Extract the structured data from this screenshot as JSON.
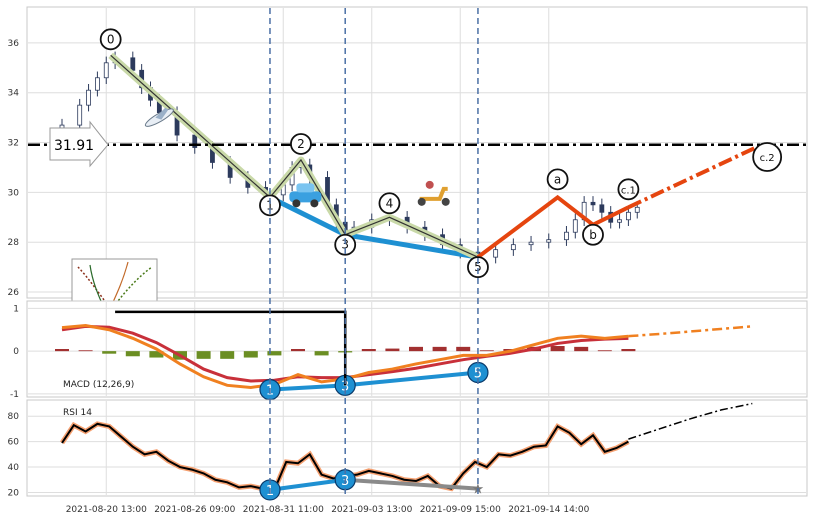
{
  "chart_data": [
    {
      "type": "line",
      "panel": "price",
      "title": "",
      "xlabel": "",
      "ylabel": "",
      "ylim": [
        25.8,
        37.4
      ],
      "yticks": [
        26,
        28,
        30,
        32,
        34,
        36
      ],
      "grid": true,
      "price_candles": [
        {
          "t": 0,
          "close": 32.7
        },
        {
          "t": 2,
          "close": 33.5
        },
        {
          "t": 3,
          "close": 34.1
        },
        {
          "t": 4,
          "close": 34.6
        },
        {
          "t": 5,
          "close": 35.2
        },
        {
          "t": 6,
          "close": 35.4
        },
        {
          "t": 8,
          "close": 34.9
        },
        {
          "t": 9,
          "close": 34.2
        },
        {
          "t": 10,
          "close": 33.7
        },
        {
          "t": 11,
          "close": 33.2
        },
        {
          "t": 13,
          "close": 32.3
        },
        {
          "t": 15,
          "close": 31.8
        },
        {
          "t": 17,
          "close": 31.2
        },
        {
          "t": 19,
          "close": 30.6
        },
        {
          "t": 21,
          "close": 30.2
        },
        {
          "t": 23,
          "close": 29.9
        },
        {
          "t": 25,
          "close": 30.3
        },
        {
          "t": 26,
          "close": 31.0
        },
        {
          "t": 27,
          "close": 31.1
        },
        {
          "t": 28,
          "close": 30.6
        },
        {
          "t": 30,
          "close": 29.5
        },
        {
          "t": 31,
          "close": 28.8
        },
        {
          "t": 32,
          "close": 28.3
        },
        {
          "t": 33,
          "close": 28.6
        },
        {
          "t": 35,
          "close": 28.9
        },
        {
          "t": 37,
          "close": 29.0
        },
        {
          "t": 39,
          "close": 28.6
        },
        {
          "t": 41,
          "close": 28.3
        },
        {
          "t": 43,
          "close": 27.9
        },
        {
          "t": 45,
          "close": 27.6
        },
        {
          "t": 47,
          "close": 27.4
        },
        {
          "t": 49,
          "close": 27.7
        },
        {
          "t": 51,
          "close": 27.9
        },
        {
          "t": 53,
          "close": 28.0
        },
        {
          "t": 55,
          "close": 28.1
        },
        {
          "t": 57,
          "close": 28.4
        },
        {
          "t": 58,
          "close": 28.9
        },
        {
          "t": 59,
          "close": 29.6
        },
        {
          "t": 60,
          "close": 29.5
        },
        {
          "t": 61,
          "close": 29.2
        },
        {
          "t": 62,
          "close": 28.8
        },
        {
          "t": 63,
          "close": 28.9
        },
        {
          "t": 64,
          "close": 29.2
        },
        {
          "t": 65,
          "close": 29.4
        }
      ],
      "wave_path": [
        {
          "label": "0",
          "t": 5.5,
          "value": 35.5
        },
        {
          "label": "1",
          "t": 23.5,
          "value": 29.8
        },
        {
          "label": "2",
          "t": 27,
          "value": 31.3
        },
        {
          "label": "3",
          "t": 32,
          "value": 28.3
        },
        {
          "label": "4",
          "t": 37,
          "value": 29.0
        },
        {
          "label": "5",
          "t": 47,
          "value": 27.4
        }
      ],
      "projection_path": [
        {
          "label": "5",
          "t": 47,
          "value": 27.4
        },
        {
          "label": "a",
          "t": 56,
          "value": 29.8
        },
        {
          "label": "b",
          "t": 60,
          "value": 28.7
        },
        {
          "label": "c.1",
          "t": 64,
          "value": 29.4
        },
        {
          "label": "c.2",
          "t": 79,
          "value": 31.9
        }
      ],
      "support_line": [
        {
          "t": 23.5,
          "value": 29.8
        },
        {
          "t": 32,
          "value": 28.3
        },
        {
          "t": 47,
          "value": 27.4
        }
      ],
      "level_line": {
        "value": 31.91,
        "label": "31.91"
      },
      "wave_labels": [
        "0",
        "1",
        "2",
        "3",
        "4",
        "5",
        "a",
        "b",
        "c.1",
        "c.2"
      ],
      "vertical_markers_t": [
        23.5,
        32,
        47
      ],
      "icons": [
        "airplane-icon",
        "car-icon",
        "scooter-icon"
      ],
      "colors": {
        "wave": "#c9d9a8",
        "wave_edge": "#333333",
        "support": "#1e90d2",
        "projection": "#e5450f",
        "level": "#000000",
        "candle_up": "#ffffff",
        "candle_down": "#2c3a5c",
        "marker": "#4a6fa5"
      }
    },
    {
      "type": "line",
      "panel": "macd",
      "label": "MACD (12,26,9)",
      "ylim": [
        -1.05,
        1.15
      ],
      "yticks": [
        -1,
        0,
        1
      ],
      "grid": true,
      "macd": [
        0.55,
        0.6,
        0.5,
        0.3,
        0.05,
        -0.3,
        -0.6,
        -0.8,
        -0.85,
        -0.78,
        -0.55,
        -0.72,
        -0.65,
        -0.5,
        -0.42,
        -0.3,
        -0.2,
        -0.1,
        -0.1,
        0.0,
        0.15,
        0.3,
        0.35,
        0.3,
        0.35
      ],
      "signal": [
        0.5,
        0.58,
        0.56,
        0.42,
        0.2,
        -0.1,
        -0.42,
        -0.62,
        -0.7,
        -0.68,
        -0.6,
        -0.62,
        -0.62,
        -0.55,
        -0.48,
        -0.4,
        -0.3,
        -0.2,
        -0.12,
        -0.05,
        0.05,
        0.18,
        0.25,
        0.28,
        0.3
      ],
      "histogram": [
        0.05,
        0.02,
        -0.06,
        -0.12,
        -0.15,
        -0.2,
        -0.18,
        -0.18,
        -0.15,
        -0.1,
        0.05,
        -0.1,
        -0.03,
        0.05,
        0.06,
        0.1,
        0.1,
        0.1,
        0.02,
        0.05,
        0.1,
        0.12,
        0.1,
        0.02,
        0.05
      ],
      "projection": [
        0.35,
        0.42,
        0.5,
        0.58
      ],
      "points": [
        {
          "label": "1",
          "t": 23.5,
          "value": -0.9
        },
        {
          "label": "3",
          "t": 32,
          "value": -0.8
        },
        {
          "label": "5",
          "t": 47,
          "value": -0.5
        }
      ],
      "colors": {
        "macd": "#f08020",
        "signal": "#c8303a",
        "hist_pos": "#a23030",
        "hist_neg": "#6b8e23",
        "marker": "#1e90d2"
      }
    },
    {
      "type": "line",
      "panel": "rsi",
      "label": "RSI 14",
      "ylim": [
        18,
        92
      ],
      "yticks": [
        20,
        40,
        60,
        80
      ],
      "grid": true,
      "rsi": [
        59,
        73,
        68,
        74,
        72,
        64,
        56,
        50,
        52,
        45,
        40,
        38,
        35,
        30,
        28,
        24,
        25,
        23,
        22,
        44,
        43,
        50,
        34,
        31,
        33,
        34,
        37,
        35,
        33,
        30,
        29,
        33,
        25,
        23,
        35,
        44,
        40,
        50,
        49,
        52,
        56,
        57,
        72,
        67,
        58,
        65,
        52,
        55,
        60
      ],
      "rsi_projection": [
        62,
        70,
        78,
        85,
        90
      ],
      "points": [
        {
          "label": "1",
          "t": 23.5,
          "value": 22
        },
        {
          "label": "3",
          "t": 32,
          "value": 30
        }
      ],
      "divergence_end": {
        "t": 47,
        "value": 23
      },
      "x_tick_labels": [
        "2021-08-20 13:00",
        "2021-08-26 09:00",
        "2021-08-31 11:00",
        "2021-09-03 13:00",
        "2021-09-09 15:00",
        "2021-09-14 14:00"
      ],
      "x_tick_t": [
        5,
        15,
        25,
        35,
        45,
        55
      ],
      "colors": {
        "rsi": "#000000",
        "rsi_glow": "#f5a070",
        "marker": "#1e90d2"
      }
    }
  ]
}
